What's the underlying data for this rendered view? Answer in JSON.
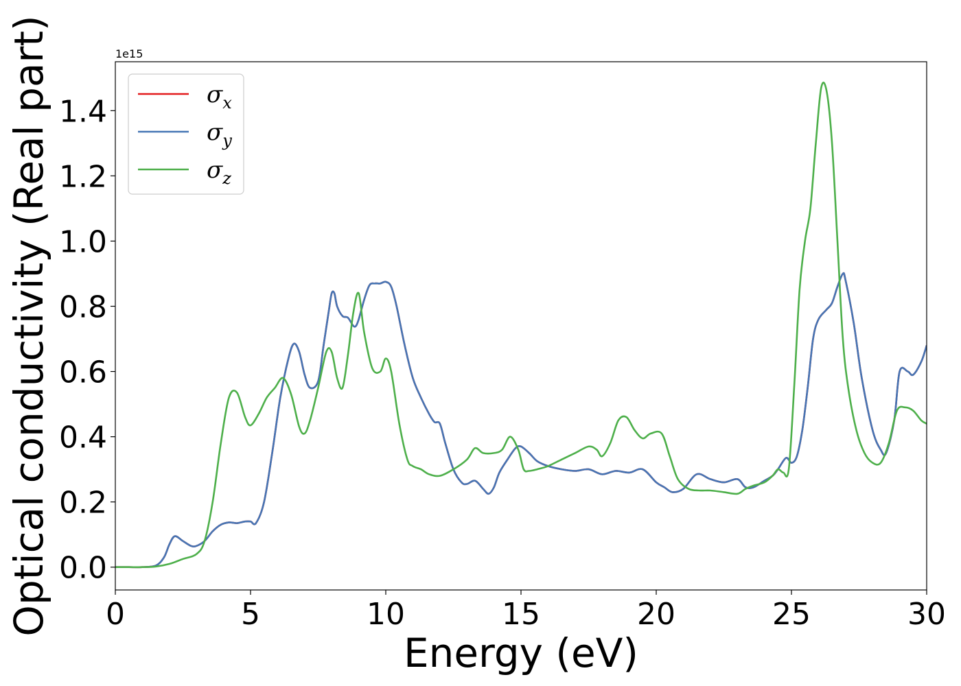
{
  "chart_data": {
    "type": "line",
    "xlabel": "Energy (eV)",
    "ylabel": "Optical conductivity (Real part)",
    "offset_text": "1e15",
    "xlim": [
      0,
      30
    ],
    "ylim": [
      -0.07,
      1.55
    ],
    "xticks": [
      0,
      5,
      10,
      15,
      20,
      25,
      30
    ],
    "xtick_labels": [
      "0",
      "5",
      "10",
      "15",
      "20",
      "25",
      "30"
    ],
    "yticks": [
      0.0,
      0.2,
      0.4,
      0.6,
      0.8,
      1.0,
      1.2,
      1.4
    ],
    "ytick_labels": [
      "0.0",
      "0.2",
      "0.4",
      "0.6",
      "0.8",
      "1.0",
      "1.2",
      "1.4"
    ],
    "grid": false,
    "legend_position": "top-left",
    "series": [
      {
        "name": "σx",
        "base": "σ",
        "sub": "x",
        "color": "#e31a1c",
        "x": [
          0,
          0.5,
          1.0,
          1.5,
          1.8,
          2.0,
          2.2,
          2.5,
          2.8,
          3.0,
          3.3,
          3.6,
          3.9,
          4.2,
          4.5,
          4.8,
          5.0,
          5.2,
          5.5,
          5.8,
          6.1,
          6.4,
          6.6,
          6.8,
          7.0,
          7.2,
          7.5,
          7.7,
          7.9,
          8.0,
          8.1,
          8.2,
          8.4,
          8.6,
          8.8,
          8.9,
          9.0,
          9.2,
          9.4,
          9.6,
          9.8,
          10.0,
          10.2,
          10.4,
          10.7,
          11.0,
          11.3,
          11.6,
          11.8,
          12.0,
          12.2,
          12.5,
          12.8,
          13.0,
          13.3,
          13.6,
          13.8,
          14.0,
          14.2,
          14.5,
          14.8,
          15.0,
          15.3,
          15.6,
          16.0,
          16.5,
          17.0,
          17.5,
          18.0,
          18.5,
          19.0,
          19.5,
          20.0,
          20.3,
          20.6,
          21.0,
          21.5,
          22.0,
          22.5,
          23.0,
          23.3,
          23.6,
          24.0,
          24.3,
          24.5,
          24.8,
          25.0,
          25.2,
          25.4,
          25.6,
          25.8,
          26.0,
          26.3,
          26.5,
          26.7,
          26.9,
          27.0,
          27.3,
          27.6,
          28.0,
          28.3,
          28.5,
          28.8,
          29.0,
          29.3,
          29.5,
          29.8,
          30.0
        ],
        "y": [
          0.0,
          0.0,
          0.0,
          0.005,
          0.03,
          0.07,
          0.095,
          0.08,
          0.065,
          0.065,
          0.08,
          0.11,
          0.13,
          0.137,
          0.135,
          0.14,
          0.14,
          0.135,
          0.2,
          0.35,
          0.52,
          0.64,
          0.685,
          0.66,
          0.59,
          0.55,
          0.57,
          0.68,
          0.79,
          0.84,
          0.84,
          0.8,
          0.77,
          0.765,
          0.74,
          0.74,
          0.76,
          0.82,
          0.865,
          0.87,
          0.87,
          0.875,
          0.86,
          0.8,
          0.68,
          0.58,
          0.52,
          0.47,
          0.445,
          0.44,
          0.38,
          0.3,
          0.26,
          0.255,
          0.265,
          0.24,
          0.225,
          0.245,
          0.29,
          0.33,
          0.365,
          0.37,
          0.35,
          0.325,
          0.31,
          0.3,
          0.295,
          0.3,
          0.285,
          0.295,
          0.29,
          0.3,
          0.26,
          0.245,
          0.23,
          0.24,
          0.285,
          0.27,
          0.26,
          0.27,
          0.245,
          0.245,
          0.265,
          0.28,
          0.3,
          0.335,
          0.32,
          0.34,
          0.42,
          0.55,
          0.7,
          0.76,
          0.79,
          0.81,
          0.86,
          0.9,
          0.88,
          0.75,
          0.58,
          0.42,
          0.36,
          0.35,
          0.45,
          0.6,
          0.6,
          0.59,
          0.63,
          0.68
        ]
      },
      {
        "name": "σy",
        "base": "σ",
        "sub": "y",
        "color": "#4575b4",
        "x": [
          0,
          0.5,
          1.0,
          1.5,
          1.8,
          2.0,
          2.2,
          2.5,
          2.8,
          3.0,
          3.3,
          3.6,
          3.9,
          4.2,
          4.5,
          4.8,
          5.0,
          5.2,
          5.5,
          5.8,
          6.1,
          6.4,
          6.6,
          6.8,
          7.0,
          7.2,
          7.5,
          7.7,
          7.9,
          8.0,
          8.1,
          8.2,
          8.4,
          8.6,
          8.8,
          8.9,
          9.0,
          9.2,
          9.4,
          9.6,
          9.8,
          10.0,
          10.2,
          10.4,
          10.7,
          11.0,
          11.3,
          11.6,
          11.8,
          12.0,
          12.2,
          12.5,
          12.8,
          13.0,
          13.3,
          13.6,
          13.8,
          14.0,
          14.2,
          14.5,
          14.8,
          15.0,
          15.3,
          15.6,
          16.0,
          16.5,
          17.0,
          17.5,
          18.0,
          18.5,
          19.0,
          19.5,
          20.0,
          20.3,
          20.6,
          21.0,
          21.5,
          22.0,
          22.5,
          23.0,
          23.3,
          23.6,
          24.0,
          24.3,
          24.5,
          24.8,
          25.0,
          25.2,
          25.4,
          25.6,
          25.8,
          26.0,
          26.3,
          26.5,
          26.7,
          26.9,
          27.0,
          27.3,
          27.6,
          28.0,
          28.3,
          28.5,
          28.8,
          29.0,
          29.3,
          29.5,
          29.8,
          30.0
        ],
        "y": [
          0.0,
          0.0,
          0.0,
          0.005,
          0.03,
          0.07,
          0.095,
          0.08,
          0.065,
          0.065,
          0.08,
          0.11,
          0.13,
          0.137,
          0.135,
          0.14,
          0.14,
          0.135,
          0.2,
          0.35,
          0.52,
          0.64,
          0.685,
          0.66,
          0.59,
          0.55,
          0.57,
          0.68,
          0.79,
          0.84,
          0.84,
          0.8,
          0.77,
          0.765,
          0.74,
          0.74,
          0.76,
          0.82,
          0.865,
          0.87,
          0.87,
          0.875,
          0.86,
          0.8,
          0.68,
          0.58,
          0.52,
          0.47,
          0.445,
          0.44,
          0.38,
          0.3,
          0.26,
          0.255,
          0.265,
          0.24,
          0.225,
          0.245,
          0.29,
          0.33,
          0.365,
          0.37,
          0.35,
          0.325,
          0.31,
          0.3,
          0.295,
          0.3,
          0.285,
          0.295,
          0.29,
          0.3,
          0.26,
          0.245,
          0.23,
          0.24,
          0.285,
          0.27,
          0.26,
          0.27,
          0.245,
          0.245,
          0.265,
          0.28,
          0.3,
          0.335,
          0.32,
          0.34,
          0.42,
          0.55,
          0.7,
          0.76,
          0.79,
          0.81,
          0.86,
          0.9,
          0.88,
          0.75,
          0.58,
          0.42,
          0.36,
          0.35,
          0.45,
          0.6,
          0.6,
          0.59,
          0.63,
          0.68
        ]
      },
      {
        "name": "σz",
        "base": "σ",
        "sub": "z",
        "color": "#4daf4a",
        "x": [
          0,
          0.5,
          1.0,
          1.5,
          2.0,
          2.5,
          3.0,
          3.3,
          3.6,
          3.9,
          4.2,
          4.5,
          4.8,
          5.0,
          5.3,
          5.6,
          5.9,
          6.2,
          6.5,
          6.8,
          7.0,
          7.2,
          7.5,
          7.8,
          8.0,
          8.2,
          8.4,
          8.6,
          8.8,
          9.0,
          9.2,
          9.5,
          9.8,
          10.0,
          10.2,
          10.5,
          10.8,
          11.0,
          11.3,
          11.6,
          12.0,
          12.5,
          13.0,
          13.3,
          13.6,
          14.0,
          14.3,
          14.6,
          14.9,
          15.1,
          15.3,
          15.6,
          16.0,
          16.5,
          17.0,
          17.5,
          17.8,
          18.0,
          18.3,
          18.6,
          18.9,
          19.2,
          19.5,
          19.8,
          20.2,
          20.5,
          20.8,
          21.2,
          21.6,
          22.0,
          22.5,
          23.0,
          23.3,
          23.6,
          24.0,
          24.3,
          24.5,
          24.7,
          24.9,
          25.1,
          25.3,
          25.5,
          25.7,
          25.9,
          26.1,
          26.3,
          26.5,
          26.7,
          26.9,
          27.1,
          27.4,
          27.7,
          28.0,
          28.3,
          28.6,
          28.9,
          29.2,
          29.5,
          29.8,
          30.0
        ],
        "y": [
          0.0,
          0.0,
          0.0,
          0.002,
          0.01,
          0.025,
          0.04,
          0.08,
          0.2,
          0.38,
          0.52,
          0.535,
          0.46,
          0.435,
          0.47,
          0.52,
          0.55,
          0.58,
          0.53,
          0.43,
          0.41,
          0.45,
          0.55,
          0.66,
          0.66,
          0.58,
          0.55,
          0.65,
          0.78,
          0.84,
          0.72,
          0.61,
          0.6,
          0.64,
          0.6,
          0.44,
          0.33,
          0.31,
          0.3,
          0.285,
          0.28,
          0.3,
          0.33,
          0.365,
          0.35,
          0.35,
          0.36,
          0.4,
          0.36,
          0.3,
          0.295,
          0.3,
          0.31,
          0.33,
          0.35,
          0.37,
          0.36,
          0.34,
          0.38,
          0.45,
          0.46,
          0.42,
          0.395,
          0.41,
          0.41,
          0.34,
          0.27,
          0.24,
          0.235,
          0.235,
          0.23,
          0.225,
          0.24,
          0.25,
          0.26,
          0.28,
          0.3,
          0.29,
          0.3,
          0.55,
          0.85,
          1.0,
          1.1,
          1.3,
          1.47,
          1.46,
          1.3,
          1.0,
          0.7,
          0.55,
          0.42,
          0.35,
          0.32,
          0.32,
          0.38,
          0.48,
          0.49,
          0.48,
          0.45,
          0.44
        ]
      }
    ]
  }
}
